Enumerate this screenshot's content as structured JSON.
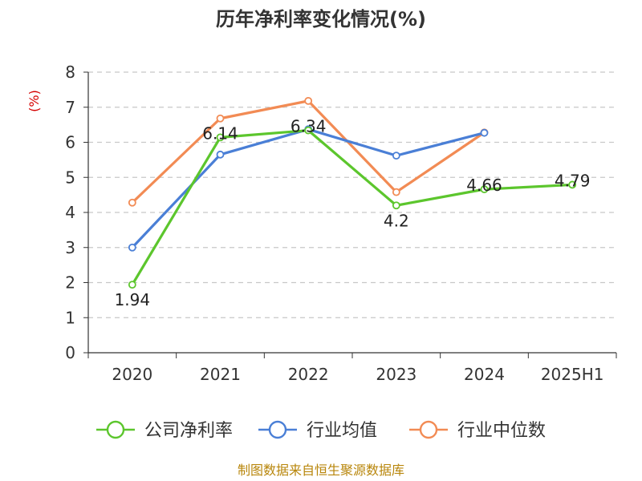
{
  "title": "历年净利率变化情况(%)",
  "source": "制图数据来自恒生聚源数据库",
  "chart_data": {
    "type": "line",
    "title": "历年净利率变化情况(%)",
    "ylabel": "(%)",
    "xlabel": "",
    "categories": [
      "2020",
      "2021",
      "2022",
      "2023",
      "2024",
      "2025H1"
    ],
    "ylim": [
      0,
      8
    ],
    "yticks": [
      0,
      1,
      2,
      3,
      4,
      5,
      6,
      7,
      8
    ],
    "grid": true,
    "legend": "bottom",
    "series": [
      {
        "name": "公司净利率",
        "color": "#5cc62d",
        "values": [
          1.94,
          6.14,
          6.34,
          4.2,
          4.66,
          4.79
        ],
        "labels": [
          "1.94",
          "6.14",
          "6.34",
          "4.2",
          "4.66",
          "4.79"
        ]
      },
      {
        "name": "行业均值",
        "color": "#4a7fd6",
        "values": [
          3.0,
          5.65,
          6.37,
          5.62,
          6.27,
          null
        ]
      },
      {
        "name": "行业中位数",
        "color": "#f28b54",
        "values": [
          4.28,
          6.68,
          7.18,
          4.58,
          6.28,
          null
        ]
      }
    ]
  }
}
